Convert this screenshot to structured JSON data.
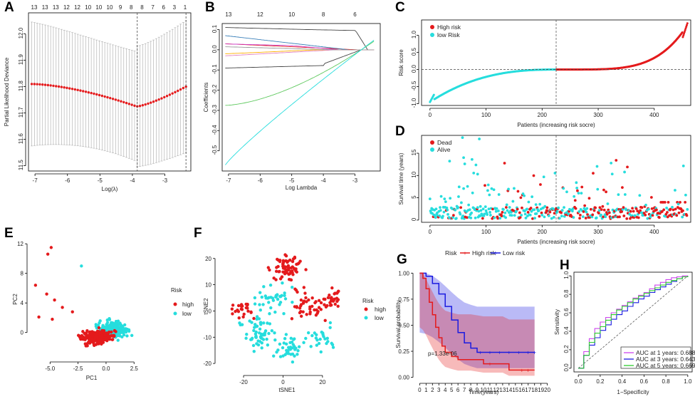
{
  "colors": {
    "red": "#e41a1c",
    "cyan": "#26dddd",
    "green": "#5fc95f",
    "blue": "#1a1ae0",
    "purple": "#cc44ee",
    "grey": "#999999"
  },
  "panels": [
    {
      "id": "A",
      "label": "A",
      "type": "line",
      "top_labels": [
        "13",
        "13",
        "13",
        "12",
        "12",
        "10",
        "10",
        "10",
        "9",
        "8",
        "8",
        "7",
        "6",
        "3",
        "1"
      ],
      "xlabel": "Log(λ)",
      "ylabel": "Partial Likelihood Deviance",
      "xticks": [
        "-7",
        "-6",
        "-5",
        "-4",
        "-3"
      ],
      "yticks": [
        "11.5",
        "11.6",
        "11.7",
        "11.8",
        "11.9",
        "12.0"
      ],
      "xlim": [
        -7.2,
        -2.2
      ],
      "ylim": [
        11.48,
        12.08
      ],
      "vlines": [
        -3.85,
        -2.35
      ]
    },
    {
      "id": "B",
      "label": "B",
      "type": "line",
      "top_labels": [
        "13",
        "12",
        "10",
        "8",
        "6"
      ],
      "xlabel": "Log Lambda",
      "ylabel": "Coefficients",
      "xticks": [
        "-7",
        "-6",
        "-5",
        "-4",
        "-3"
      ],
      "yticks": [
        "-0.5",
        "-0.4",
        "-0.3",
        "-0.2",
        "-0.1",
        "0.0",
        "0.1"
      ],
      "xlim": [
        -7.2,
        -2.2
      ],
      "ylim": [
        -0.6,
        0.13
      ]
    },
    {
      "id": "C",
      "label": "C",
      "type": "scatter",
      "legend": [
        "High risk",
        "low Risk"
      ],
      "xlabel": "Patients (increasing risk socre)",
      "ylabel": "Risk score",
      "xticks": [
        "0",
        "100",
        "200",
        "300",
        "400"
      ],
      "yticks": [
        "-1.0",
        "-0.5",
        "0.0",
        "0.5",
        "1.0"
      ],
      "xlim": [
        -15,
        465
      ],
      "ylim": [
        -1.05,
        1.45
      ],
      "cutoff": 225
    },
    {
      "id": "D",
      "label": "D",
      "type": "scatter",
      "legend": [
        "Dead",
        "Alive"
      ],
      "xlabel": "Patients (increasing risk socre)",
      "ylabel": "Survival time (years)",
      "xticks": [
        "0",
        "100",
        "200",
        "300",
        "400"
      ],
      "yticks": [
        "0",
        "5",
        "10",
        "15"
      ],
      "xlim": [
        -15,
        465
      ],
      "ylim": [
        -0.5,
        19
      ],
      "cutoff": 225
    },
    {
      "id": "E",
      "label": "E",
      "type": "scatter",
      "legend_title": "Risk",
      "legend": [
        "high",
        "low"
      ],
      "xlabel": "PC1",
      "ylabel": "PC2",
      "xticks": [
        "-5.0",
        "-2.5",
        "0.0",
        "2.5"
      ],
      "yticks": [
        "0",
        "4",
        "8",
        "12"
      ],
      "xlim": [
        -6.8,
        4.2
      ],
      "ylim": [
        -3.5,
        12.5
      ]
    },
    {
      "id": "F",
      "label": "F",
      "type": "scatter",
      "legend_title": "Risk",
      "legend": [
        "high",
        "low"
      ],
      "xlabel": "tSNE1",
      "ylabel": "tSNE2",
      "xticks": [
        "-20",
        "0",
        "20"
      ],
      "yticks": [
        "-20",
        "-10",
        "0",
        "10",
        "20"
      ],
      "xlim": [
        -33,
        37
      ],
      "ylim": [
        -23.5,
        27
      ]
    },
    {
      "id": "G",
      "label": "G",
      "type": "line",
      "legend_title": "Risk",
      "legend": [
        "High risk",
        "Low risk"
      ],
      "pvalue": "p=1.33e-06",
      "xlabel": "Time(years)",
      "ylabel": "Survival probability",
      "xticks": [
        "0",
        "1",
        "2",
        "3",
        "4",
        "5",
        "6",
        "7",
        "8",
        "9",
        "10",
        "11",
        "12",
        "13",
        "14",
        "15",
        "16",
        "17",
        "18",
        "19",
        "20"
      ],
      "yticks": [
        "0.00",
        "0.25",
        "0.50",
        "0.75",
        "1.00"
      ],
      "xlim": [
        -0.6,
        20.6
      ],
      "ylim": [
        -0.03,
        1.05
      ],
      "series": [
        {
          "name": "High risk",
          "points": [
            [
              0,
              1.0
            ],
            [
              0.5,
              0.95
            ],
            [
              1,
              0.85
            ],
            [
              1.5,
              0.72
            ],
            [
              2,
              0.6
            ],
            [
              2.5,
              0.48
            ],
            [
              3,
              0.38
            ],
            [
              3.5,
              0.3
            ],
            [
              4,
              0.24
            ],
            [
              5,
              0.2
            ],
            [
              6,
              0.17
            ],
            [
              8,
              0.17
            ],
            [
              10,
              0.13
            ],
            [
              13,
              0.13
            ],
            [
              14,
              0.07
            ],
            [
              18,
              0.07
            ]
          ]
        },
        {
          "name": "Low risk",
          "points": [
            [
              0,
              1.0
            ],
            [
              1,
              0.97
            ],
            [
              2,
              0.9
            ],
            [
              3,
              0.8
            ],
            [
              4,
              0.68
            ],
            [
              5,
              0.55
            ],
            [
              6,
              0.43
            ],
            [
              7,
              0.33
            ],
            [
              8,
              0.28
            ],
            [
              9,
              0.24
            ],
            [
              18,
              0.24
            ]
          ]
        }
      ]
    },
    {
      "id": "H",
      "label": "H",
      "type": "line",
      "legend": [
        "AUC at 1 years: 0.688",
        "AUC at 3 years: 0.643",
        "AUC at 5 years: 0.669"
      ],
      "xlabel": "1−Specificity",
      "ylabel": "Sensitivity",
      "xticks": [
        "0.0",
        "0.2",
        "0.4",
        "0.6",
        "0.8",
        "1.0"
      ],
      "yticks": [
        "0.0",
        "0.2",
        "0.4",
        "0.6",
        "0.8",
        "1.0"
      ],
      "xlim": [
        -0.04,
        1.04
      ],
      "ylim": [
        -0.04,
        1.04
      ],
      "series": [
        {
          "name": "AUC at 1 years",
          "values": [
            0.0,
            0.18,
            0.32,
            0.43,
            0.5,
            0.55,
            0.6,
            0.64,
            0.68,
            0.72,
            0.76,
            0.79,
            0.82,
            0.86,
            0.9,
            0.93,
            0.96,
            0.98,
            0.99,
            1.0,
            1.0
          ]
        },
        {
          "name": "AUC at 3 years",
          "values": [
            0.0,
            0.14,
            0.25,
            0.33,
            0.41,
            0.47,
            0.53,
            0.58,
            0.62,
            0.67,
            0.71,
            0.75,
            0.78,
            0.82,
            0.85,
            0.88,
            0.91,
            0.94,
            0.97,
            0.99,
            1.0
          ]
        },
        {
          "name": "AUC at 5 years",
          "values": [
            0.0,
            0.14,
            0.28,
            0.38,
            0.45,
            0.52,
            0.58,
            0.63,
            0.67,
            0.71,
            0.75,
            0.78,
            0.81,
            0.84,
            0.87,
            0.9,
            0.93,
            0.95,
            0.97,
            0.99,
            1.0
          ]
        }
      ]
    }
  ],
  "chart_data": [
    {
      "type": "line",
      "panel": "A",
      "title": "",
      "xlabel": "Log(λ)",
      "ylabel": "Partial Likelihood Deviance",
      "x": [
        -7.1,
        -6.5,
        -6,
        -5.5,
        -5,
        -4.5,
        -4,
        -3.85,
        -3.5,
        -3,
        -2.5,
        -2.35
      ],
      "values": [
        11.81,
        11.805,
        11.795,
        11.78,
        11.765,
        11.75,
        11.73,
        11.725,
        11.73,
        11.76,
        11.79,
        11.8
      ],
      "ylim": [
        11.48,
        12.08
      ]
    },
    {
      "type": "line",
      "panel": "B",
      "title": "",
      "xlabel": "Log Lambda",
      "ylabel": "Coefficients",
      "ylim": [
        -0.6,
        0.13
      ]
    },
    {
      "type": "scatter",
      "panel": "C",
      "title": "",
      "xlabel": "Patients (increasing risk socre)",
      "ylabel": "Risk score",
      "series": [
        {
          "name": "High risk"
        },
        {
          "name": "low Risk"
        }
      ],
      "ylim": [
        -1.05,
        1.45
      ]
    },
    {
      "type": "scatter",
      "panel": "D",
      "title": "",
      "xlabel": "Patients (increasing risk socre)",
      "ylabel": "Survival time (years)",
      "series": [
        {
          "name": "Dead"
        },
        {
          "name": "Alive"
        }
      ],
      "ylim": [
        -0.5,
        19
      ]
    },
    {
      "type": "scatter",
      "panel": "E",
      "title": "",
      "xlabel": "PC1",
      "ylabel": "PC2",
      "series": [
        {
          "name": "high"
        },
        {
          "name": "low"
        }
      ]
    },
    {
      "type": "scatter",
      "panel": "F",
      "title": "",
      "xlabel": "tSNE1",
      "ylabel": "tSNE2",
      "series": [
        {
          "name": "high"
        },
        {
          "name": "low"
        }
      ]
    },
    {
      "type": "line",
      "panel": "G",
      "title": "",
      "xlabel": "Time(years)",
      "ylabel": "Survival probability",
      "annotation": "p=1.33e-06",
      "series": [
        {
          "name": "High risk"
        },
        {
          "name": "Low risk"
        }
      ]
    },
    {
      "type": "line",
      "panel": "H",
      "title": "",
      "xlabel": "1−Specificity",
      "ylabel": "Sensitivity",
      "series": [
        {
          "name": "AUC at 1 years",
          "auc": 0.688
        },
        {
          "name": "AUC at 3 years",
          "auc": 0.643
        },
        {
          "name": "AUC at 5 years",
          "auc": 0.669
        }
      ]
    }
  ]
}
